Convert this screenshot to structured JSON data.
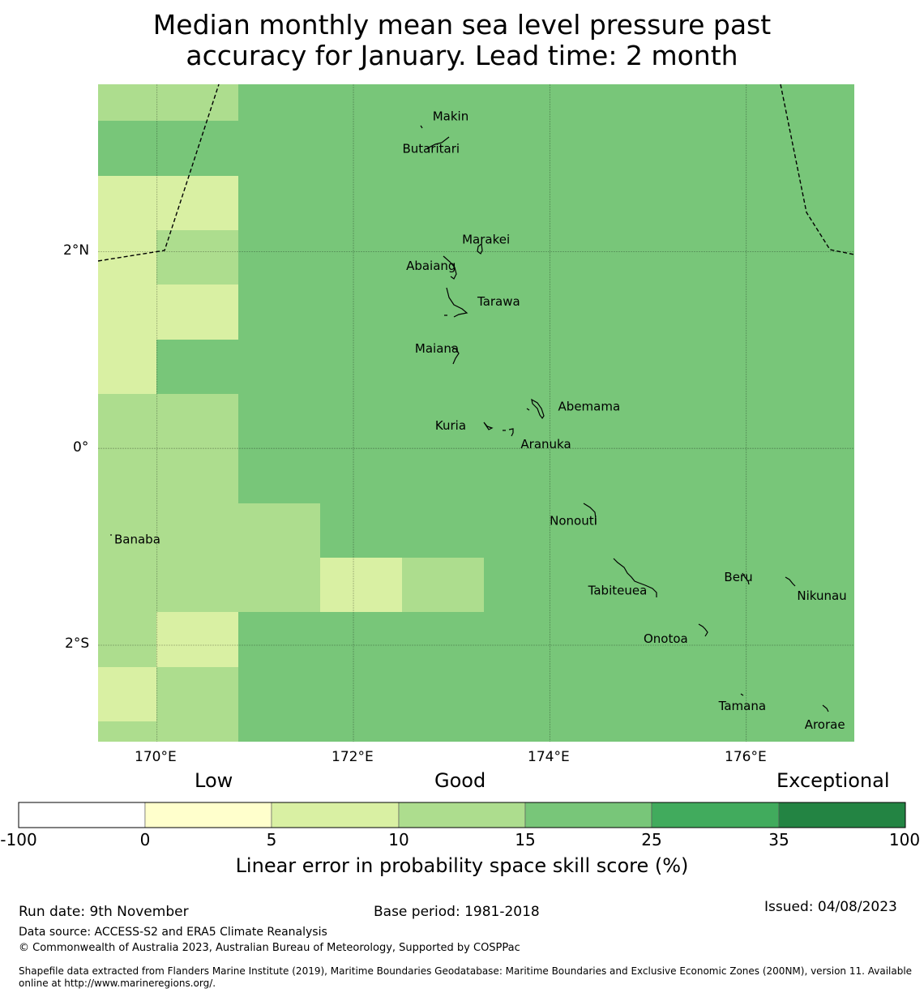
{
  "title_line1": "Median monthly mean sea level pressure past",
  "title_line2": "accuracy for January. Lead time: 2 month",
  "map": {
    "bounds": {
      "lon_min": 169.4,
      "lon_max": 177.1,
      "lat_min": -2.98,
      "lat_max": 3.7
    },
    "grid_lons": [
      170,
      172,
      174,
      176
    ],
    "grid_lats": [
      2,
      0,
      -2
    ],
    "lon_labels": [
      "170°E",
      "172°E",
      "174°E",
      "176°E"
    ],
    "lat_labels": [
      "2°N",
      "0°",
      "2°S"
    ],
    "grid_cell_deg": 0.833,
    "background_class": 4,
    "cells": [
      {
        "col": 0,
        "row": 0,
        "cls": 3
      },
      {
        "col": 1,
        "row": 0,
        "cls": 3
      },
      {
        "col": 0,
        "row": 2,
        "cls": 2
      },
      {
        "col": 1,
        "row": 2,
        "cls": 2
      },
      {
        "col": 0,
        "row": 3,
        "cls": 2
      },
      {
        "col": 1,
        "row": 3,
        "cls": 3
      },
      {
        "col": 0,
        "row": 4,
        "cls": 2
      },
      {
        "col": 1,
        "row": 4,
        "cls": 2
      },
      {
        "col": 0,
        "row": 5,
        "cls": 2
      },
      {
        "col": 0,
        "row": 6,
        "cls": 3
      },
      {
        "col": 1,
        "row": 6,
        "cls": 3
      },
      {
        "col": 0,
        "row": 7,
        "cls": 3
      },
      {
        "col": 1,
        "row": 7,
        "cls": 3
      },
      {
        "col": 0,
        "row": 8,
        "cls": 3
      },
      {
        "col": 1,
        "row": 8,
        "cls": 3
      },
      {
        "col": 2,
        "row": 8,
        "cls": 3
      },
      {
        "col": 0,
        "row": 9,
        "cls": 3
      },
      {
        "col": 1,
        "row": 9,
        "cls": 3
      },
      {
        "col": 2,
        "row": 9,
        "cls": 3
      },
      {
        "col": 3,
        "row": 9,
        "cls": 2
      },
      {
        "col": 4,
        "row": 9,
        "cls": 3
      },
      {
        "col": 0,
        "row": 10,
        "cls": 3
      },
      {
        "col": 1,
        "row": 10,
        "cls": 2
      },
      {
        "col": 0,
        "row": 11,
        "cls": 2
      },
      {
        "col": 1,
        "row": 11,
        "cls": 3
      },
      {
        "col": 0,
        "row": 12,
        "cls": 3
      },
      {
        "col": 1,
        "row": 12,
        "cls": 3
      }
    ],
    "islands": [
      {
        "name": "Makin",
        "lon": 172.99,
        "lat": 3.37
      },
      {
        "name": "Butaritari",
        "lon": 172.79,
        "lat": 3.04
      },
      {
        "name": "Marakei",
        "lon": 173.35,
        "lat": 2.12
      },
      {
        "name": "Abaiang",
        "lon": 172.79,
        "lat": 1.85
      },
      {
        "name": "Tarawa",
        "lon": 173.48,
        "lat": 1.49
      },
      {
        "name": "Maiana",
        "lon": 172.85,
        "lat": 1.01
      },
      {
        "name": "Abemama",
        "lon": 174.4,
        "lat": 0.42
      },
      {
        "name": "Kuria",
        "lon": 172.99,
        "lat": 0.23
      },
      {
        "name": "Aranuka",
        "lon": 173.96,
        "lat": 0.04
      },
      {
        "name": "Banaba",
        "lon": 169.8,
        "lat": -0.93
      },
      {
        "name": "Nonouti",
        "lon": 174.24,
        "lat": -0.74
      },
      {
        "name": "Beru",
        "lon": 175.92,
        "lat": -1.31
      },
      {
        "name": "Tabiteuea",
        "lon": 174.69,
        "lat": -1.45
      },
      {
        "name": "Nikunau",
        "lon": 176.77,
        "lat": -1.5
      },
      {
        "name": "Onotoa",
        "lon": 175.18,
        "lat": -1.94
      },
      {
        "name": "Tamana",
        "lon": 175.96,
        "lat": -2.62
      },
      {
        "name": "Arorae",
        "lon": 176.8,
        "lat": -2.81
      }
    ]
  },
  "colorbar": {
    "category_labels": [
      "Low",
      "Good",
      "Exceptional"
    ],
    "ticks": [
      "-100",
      "0",
      "5",
      "10",
      "15",
      "25",
      "35",
      "100"
    ],
    "colors": [
      "#ffffff",
      "#ffffcc",
      "#d9f0a3",
      "#addd8e",
      "#78c679",
      "#41ab5d",
      "#238443"
    ],
    "title": "Linear error in probability space skill score (%)"
  },
  "footer": {
    "run_date": "Run date: 9th November",
    "base_period": "Base period: 1981-2018",
    "issued": "Issued: 04/08/2023",
    "data_source": "Data source: ACCESS-S2 and ERA5 Climate Reanalysis",
    "copyright": "© Commonwealth of Australia 2023, Australian Bureau of Meteorology, Supported by COSPPac",
    "shapefile_line1": "Shapefile data extracted from Flanders Marine Institute (2019), Maritime Boundaries Geodatabase: Maritime Boundaries and Exclusive Economic Zones (200NM), version 11. Available",
    "shapefile_line2": "online at http://www.marineregions.org/."
  }
}
